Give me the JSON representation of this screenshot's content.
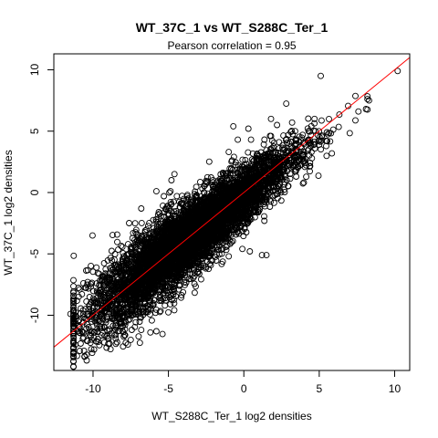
{
  "chart_data": {
    "type": "scatter",
    "title": "WT_37C_1 vs WT_S288C_Ter_1",
    "subtitle_prefix": "Pearson correlation = ",
    "pearson_correlation": "0.95",
    "xlabel": "WT_S288C_Ter_1 log2 densities",
    "ylabel": "WT_37C_1 log2 densities",
    "xlim": [
      -12.6,
      11.0
    ],
    "ylim": [
      -14.5,
      11.3
    ],
    "xticks": [
      -10,
      -5,
      0,
      5,
      10
    ],
    "xtick_labels": [
      "-10",
      "-5",
      "0",
      "5",
      "10"
    ],
    "yticks": [
      -10,
      -5,
      0,
      5,
      10
    ],
    "ytick_labels": [
      "-10",
      "-5",
      "0",
      "5",
      "10"
    ],
    "grid": false,
    "legend": "none",
    "marker": "open-circle",
    "point_color": "#000000",
    "fit_line": {
      "intercept": 0.0,
      "slope": 1.0,
      "color": "#ff0000"
    },
    "n_points_approx": 6000,
    "points_note": "dense elongated cloud; generated by script from summary stats",
    "cloud": {
      "x_mean": -3.5,
      "x_sd": 3.3,
      "slope": 0.95,
      "intercept": -0.25,
      "resid_sd": 1.1
    },
    "outliers": [
      [
        10.2,
        9.9
      ],
      [
        5.1,
        9.5
      ],
      [
        8.3,
        7.5
      ],
      [
        8.1,
        6.8
      ],
      [
        7.6,
        6.6
      ],
      [
        1.8,
        6.0
      ],
      [
        2.2,
        5.5
      ],
      [
        3.2,
        5.7
      ],
      [
        3.4,
        5.0
      ],
      [
        3.9,
        4.7
      ],
      [
        0.3,
        5.2
      ],
      [
        -0.7,
        5.4
      ],
      [
        -1.0,
        3.3
      ],
      [
        -0.4,
        4.3
      ],
      [
        1.8,
        4.6
      ],
      [
        -4.6,
        1.5
      ],
      [
        -4.8,
        1.0
      ],
      [
        -5.3,
        -0.3
      ],
      [
        -6.8,
        -1.3
      ],
      [
        -5.8,
        0.1
      ],
      [
        0.2,
        -2.2
      ],
      [
        -0.1,
        -4.6
      ],
      [
        0.4,
        -4.8
      ],
      [
        1.2,
        -5.1
      ],
      [
        1.5,
        -5.1
      ],
      [
        -1.0,
        -5.2
      ],
      [
        -6.8,
        -11.2
      ],
      [
        -5.8,
        -11.3
      ],
      [
        -6.2,
        -11.4
      ],
      [
        -8.5,
        -11.9
      ],
      [
        -10.6,
        -12.9
      ],
      [
        -11.0,
        -11.3
      ],
      [
        -11.5,
        -9.9
      ],
      [
        -11.3,
        -8.4
      ],
      [
        -7.5,
        -12.0
      ]
    ]
  }
}
